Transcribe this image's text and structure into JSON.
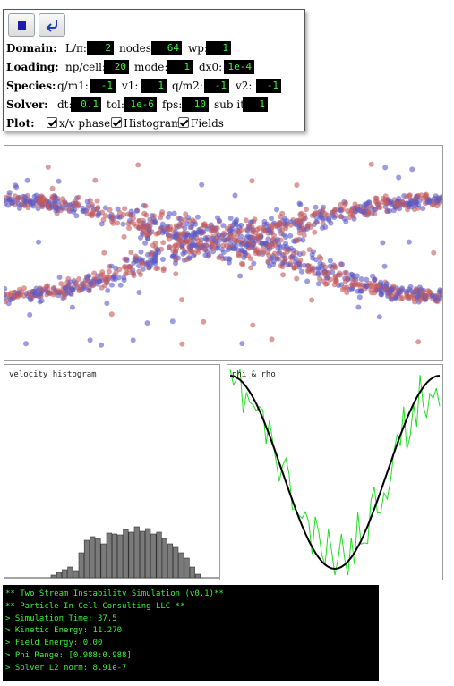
{
  "controls": {
    "domain": {
      "label": "Domain:",
      "fields": [
        {
          "label": "L/π:",
          "value": "2"
        },
        {
          "label": "nodes:",
          "value": "64"
        },
        {
          "label": "wp:",
          "value": "1"
        }
      ]
    },
    "loading": {
      "label": "Loading:",
      "fields": [
        {
          "label": "np/cell:",
          "value": "20"
        },
        {
          "label": "mode:",
          "value": "1"
        },
        {
          "label": "dx0:",
          "value": "1e-4"
        }
      ]
    },
    "species": {
      "label": "Species:",
      "fields": [
        {
          "label": "q/m1:",
          "value": "-1"
        },
        {
          "label": "v1:",
          "value": "1"
        },
        {
          "label": "q/m2:",
          "value": "-1"
        },
        {
          "label": "v2:",
          "value": "-1"
        }
      ]
    },
    "solver": {
      "label": "Solver:",
      "fields": [
        {
          "label": "dt:",
          "value": "0.1"
        },
        {
          "label": "tol:",
          "value": "1e-6"
        },
        {
          "label": "fps:",
          "value": "10"
        },
        {
          "label": "sub it:",
          "value": "1"
        }
      ]
    },
    "plot": {
      "label": "Plot:",
      "options": [
        {
          "label": "x/v phase",
          "checked": true
        },
        {
          "label": "Histogram",
          "checked": true
        },
        {
          "label": "Fields",
          "checked": true
        }
      ]
    },
    "icons": {
      "stop": "stop-icon",
      "reset": "reset-arrow-icon"
    }
  },
  "plots": {
    "histogram_title": "velocity histogram",
    "fields_title": "phi & rho",
    "histogram_bars": [
      3,
      6,
      9,
      12,
      8,
      28,
      42,
      46,
      44,
      38,
      50,
      49,
      48,
      54,
      51,
      57,
      52,
      55,
      49,
      51,
      44,
      38,
      34,
      28,
      22,
      12,
      4
    ],
    "colors": {
      "species1": "#c45a5a",
      "species2": "#5a5ac8",
      "phi": "#000000",
      "rho": "#22dd22",
      "bar": "#7a7a7a"
    }
  },
  "console": {
    "lines": [
      "** Two Stream Instability Simulation (v0.1)**",
      "** Particle In Cell Consulting LLC **",
      "> Simulation Time: 37.5",
      "> Kinetic Energy: 11.270",
      "> Field Energy: 0.00",
      "> Phi Range: [0.988:0.988]",
      "> Solver L2 norm: 8.91e-7"
    ]
  }
}
